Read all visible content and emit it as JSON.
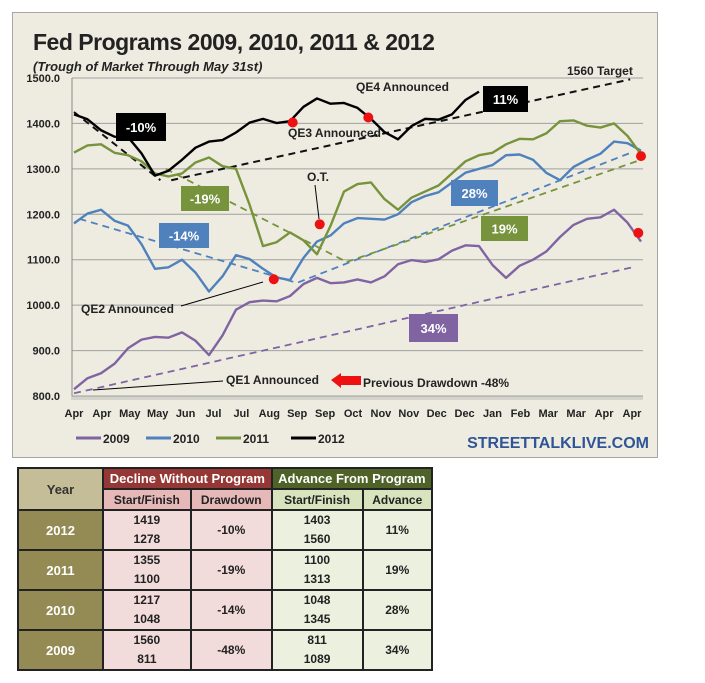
{
  "chart_data": {
    "type": "line",
    "title": "Fed Programs 2009, 2010, 2011 & 2012",
    "subtitle": "(Trough of Market Through May 31st)",
    "ylim": [
      800,
      1500
    ],
    "yticks": [
      "1500.0",
      "1400.0",
      "1300.0",
      "1200.0",
      "1100.0",
      "1000.0",
      "900.0",
      "800.0"
    ],
    "ytick_values": [
      1500,
      1400,
      1300,
      1200,
      1100,
      1000,
      900,
      800
    ],
    "xticks": [
      "Apr",
      "Apr",
      "May",
      "May",
      "Jun",
      "Jul",
      "Jul",
      "Aug",
      "Sep",
      "Sep",
      "Oct",
      "Nov",
      "Nov",
      "Dec",
      "Dec",
      "Jan",
      "Feb",
      "Mar",
      "Mar",
      "Apr",
      "Apr"
    ],
    "grid": true,
    "legend_position": "bottom-left",
    "series": [
      {
        "name": "2009",
        "color": "#8064a2",
        "values": [
          815,
          850,
          905,
          930,
          940,
          890,
          990,
          1010,
          1020,
          1060,
          1050,
          1050,
          1090,
          1095,
          1120,
          1130,
          1060,
          1100,
          1150,
          1190,
          1210,
          1140
        ]
      },
      {
        "name": "2010",
        "color": "#4f81bd",
        "values": [
          1180,
          1210,
          1175,
          1080,
          1100,
          1030,
          1110,
          1080,
          1055,
          1140,
          1180,
          1190,
          1200,
          1240,
          1270,
          1300,
          1330,
          1320,
          1275,
          1320,
          1360,
          1340
        ]
      },
      {
        "name": "2011",
        "color": "#77933c",
        "values": [
          1336,
          1354,
          1330,
          1290,
          1290,
          1325,
          1300,
          1130,
          1160,
          1112,
          1250,
          1270,
          1210,
          1250,
          1290,
          1330,
          1354,
          1365,
          1405,
          1395,
          1400,
          1332
        ]
      },
      {
        "name": "2012",
        "color": "#000000",
        "values": [
          1420,
          1385,
          1370,
          1285,
          1320,
          1360,
          1380,
          1410,
          1405,
          1455,
          1445,
          1410,
          1365,
          1410,
          1420,
          1470,
          null,
          null,
          null,
          null,
          null,
          null
        ]
      }
    ],
    "trendlines": [
      {
        "series": "2012",
        "from": [
          0,
          1425
        ],
        "to": [
          3.2,
          1275
        ]
      },
      {
        "series": "2012",
        "from": [
          3.6,
          1275
        ],
        "to": [
          20.6,
          1497
        ]
      },
      {
        "series": "2010",
        "from": [
          0.2,
          1190
        ],
        "to": [
          8.2,
          1050
        ]
      },
      {
        "series": "2010",
        "from": [
          8.3,
          1050
        ],
        "to": [
          20.6,
          1335
        ]
      },
      {
        "series": "2011",
        "from": [
          3.4,
          1300
        ],
        "to": [
          10.1,
          1095
        ]
      },
      {
        "series": "2011",
        "from": [
          10.1,
          1095
        ],
        "to": [
          21,
          1320
        ]
      },
      {
        "series": "2009",
        "from": [
          0,
          806
        ],
        "to": [
          20.8,
          1085
        ]
      }
    ],
    "markers": [
      [
        8.1,
        1402
      ],
      [
        10.9,
        1413
      ],
      [
        9.1,
        1178
      ],
      [
        7.4,
        1057
      ],
      [
        21,
        1328
      ],
      [
        20.9,
        1159
      ]
    ],
    "annotations": {
      "box_2012": "-10%",
      "box_2012_adv": "11%",
      "box_2011": "-19%",
      "box_2011_adv": "19%",
      "box_2010": "-14%",
      "box_2010_adv": "28%",
      "box_2009_adv": "34%",
      "qe1": "QE1 Announced",
      "qe2": "QE2 Announced",
      "qe3": "QE3 Announced",
      "qe4": "QE4 Announced",
      "ot": "O.T.",
      "target": "1560 Target",
      "drawdown": "Previous Drawdown -48%"
    },
    "source": "STREETTALKLIVE.COM"
  },
  "table": {
    "year_header": "Year",
    "decline_header": "Decline Without Program",
    "advance_header": "Advance From Program",
    "sub_headers": [
      "Start/Finish",
      "Drawdown",
      "Start/Finish",
      "Advance"
    ],
    "rows": [
      {
        "year": "2012",
        "d_start": "1419",
        "d_finish": "1278",
        "drawdown": "-10%",
        "a_start": "1403",
        "a_finish": "1560",
        "advance": "11%"
      },
      {
        "year": "2011",
        "d_start": "1355",
        "d_finish": "1100",
        "drawdown": "-19%",
        "a_start": "1100",
        "a_finish": "1313",
        "advance": "19%"
      },
      {
        "year": "2010",
        "d_start": "1217",
        "d_finish": "1048",
        "drawdown": "-14%",
        "a_start": "1048",
        "a_finish": "1345",
        "advance": "28%"
      },
      {
        "year": "2009",
        "d_start": "1560",
        "d_finish": "811",
        "drawdown": "-48%",
        "a_start": "811",
        "a_finish": "1089",
        "advance": "34%"
      }
    ]
  }
}
